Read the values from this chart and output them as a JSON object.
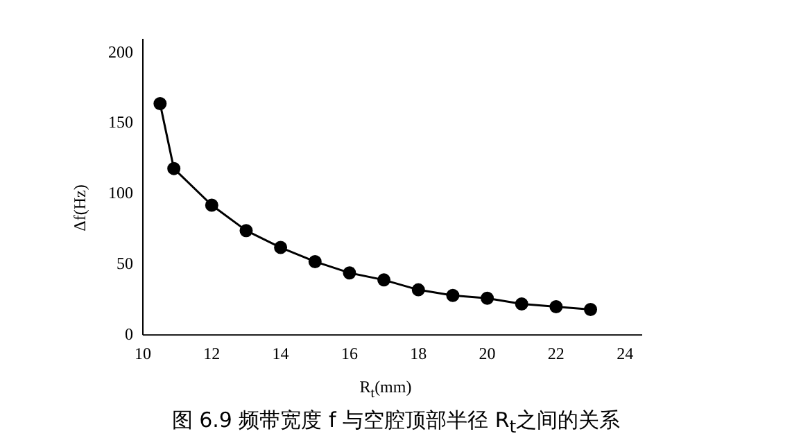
{
  "chart_data": {
    "type": "line",
    "title": "图 6.9 频带宽度 f 与空腔顶部半径 R$_{t}$之间的关系",
    "xlabel": "R$_{t}$(mm)",
    "ylabel": "Δf(Hz)",
    "x": [
      10.5,
      10.9,
      12,
      13,
      14,
      15,
      16,
      17,
      18,
      19,
      20,
      21,
      22,
      23
    ],
    "series": [
      {
        "color": "#000000",
        "values": [
          164,
          118,
          92,
          74,
          62,
          52,
          44,
          39,
          32,
          28,
          26,
          22,
          20,
          18
        ]
      }
    ],
    "xlim": [
      10,
      24.5
    ],
    "ylim": [
      0,
      210
    ],
    "xticks": [
      10,
      12,
      14,
      16,
      18,
      20,
      22,
      24
    ],
    "yticks": [
      0,
      50,
      100,
      150,
      200
    ],
    "grid": false,
    "legend": false,
    "marker": "circle",
    "line_style": "solid"
  }
}
